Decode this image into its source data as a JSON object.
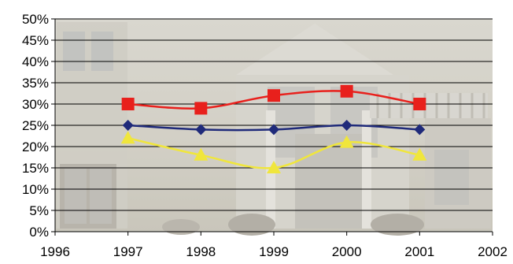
{
  "chart_data": {
    "type": "line",
    "title": "",
    "xlabel": "",
    "ylabel": "",
    "x": [
      1997,
      1998,
      1999,
      2000,
      2001
    ],
    "xlim": [
      1996,
      2002
    ],
    "ylim": [
      0,
      50
    ],
    "x_ticks": [
      "1996",
      "1997",
      "1998",
      "1999",
      "2000",
      "2001",
      "2002"
    ],
    "y_ticks": [
      "0%",
      "5%",
      "10%",
      "15%",
      "20%",
      "25%",
      "30%",
      "35%",
      "40%",
      "45%",
      "50%"
    ],
    "grid": true,
    "legend": "none",
    "background": "photo of a house facade (faded)",
    "series": [
      {
        "color": "#e8201c",
        "marker": "square",
        "values": [
          30,
          29,
          32,
          33,
          30
        ]
      },
      {
        "color": "#1f2a7a",
        "marker": "diamond",
        "values": [
          25,
          24,
          24,
          25,
          24
        ]
      },
      {
        "color": "#f0e63c",
        "marker": "triangle",
        "values": [
          22,
          18,
          15,
          21,
          18
        ]
      }
    ]
  }
}
